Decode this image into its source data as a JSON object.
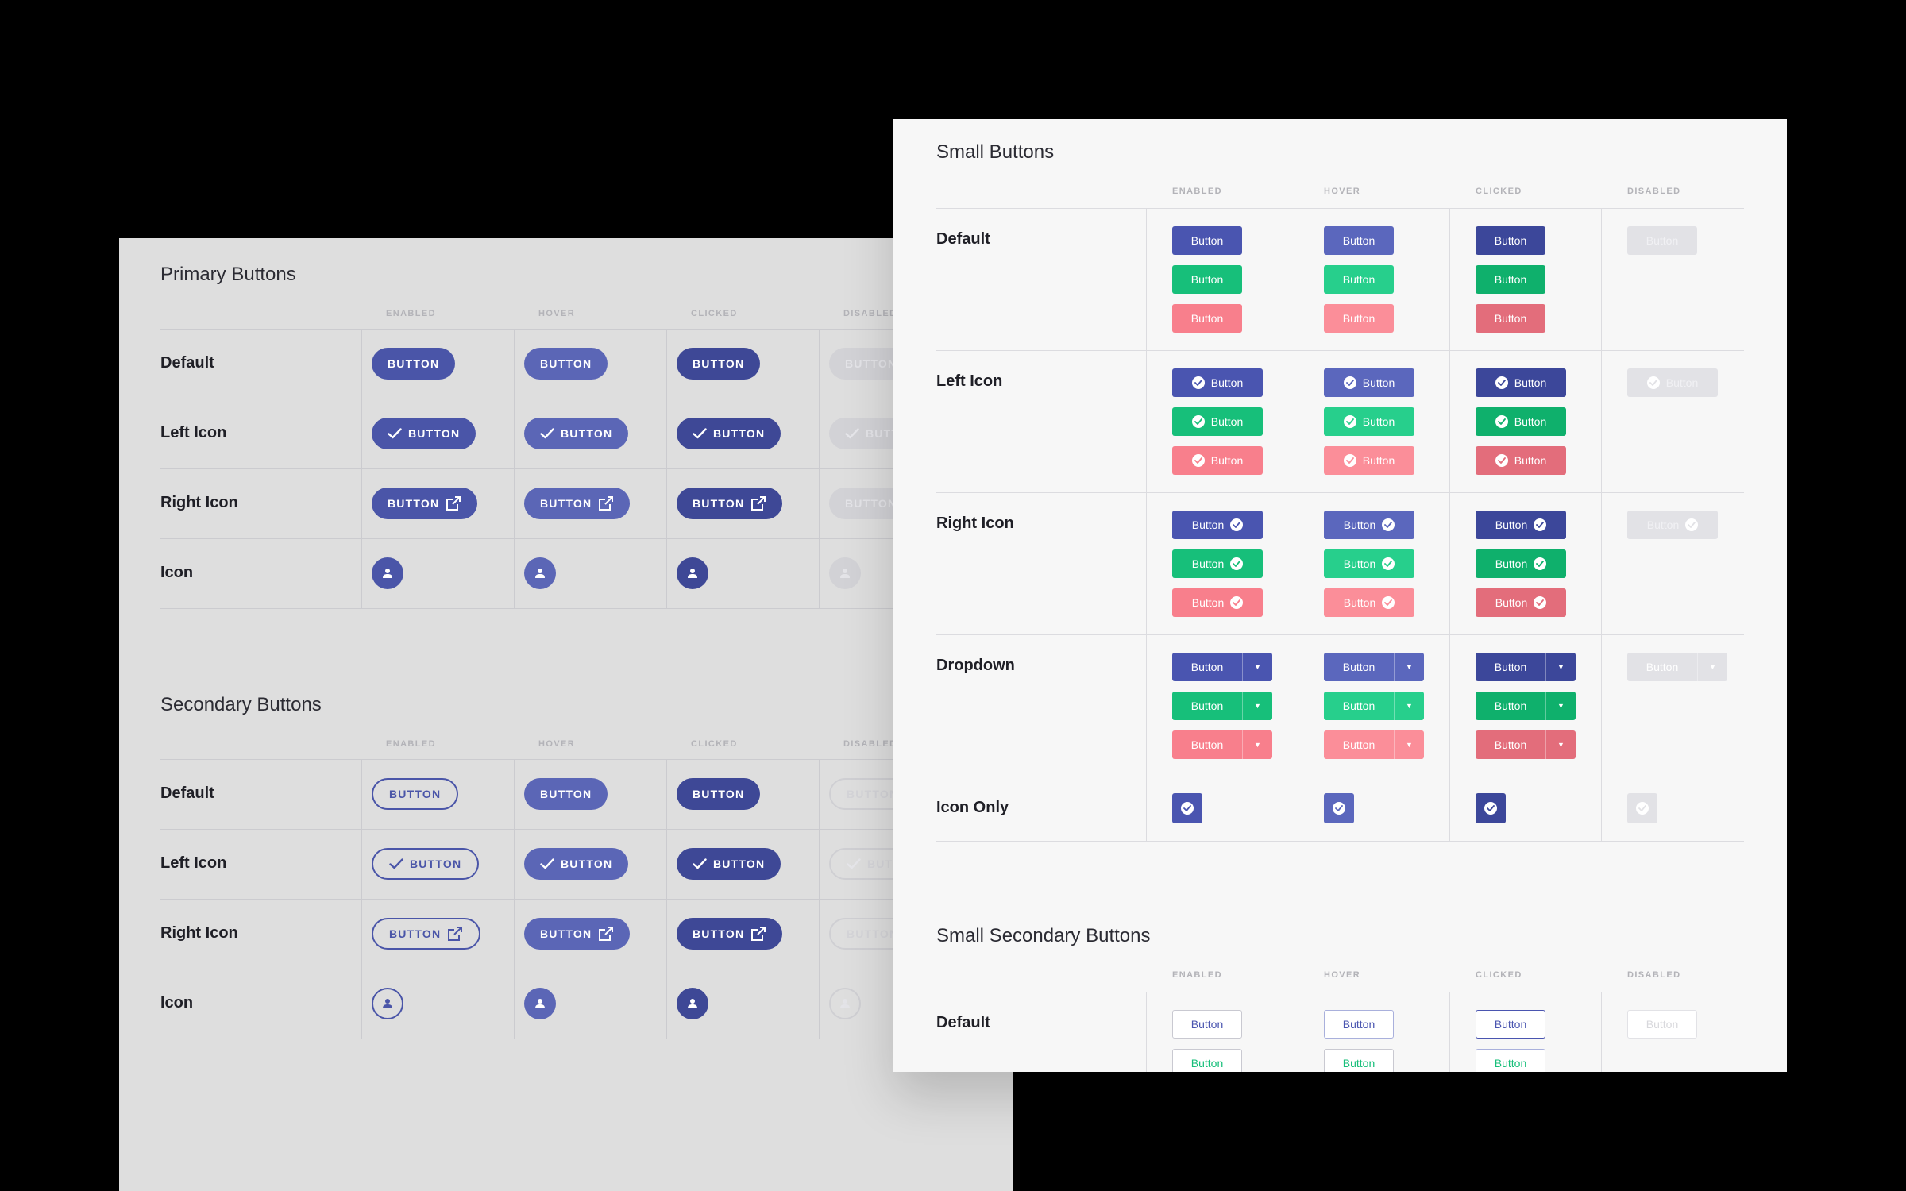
{
  "columns": [
    "ENABLED",
    "HOVER",
    "CLICKED",
    "DISABLED"
  ],
  "primary": {
    "title": "Primary Buttons",
    "rows": [
      "Default",
      "Left Icon",
      "Right Icon",
      "Icon"
    ],
    "button_label": "BUTTON"
  },
  "secondary": {
    "title": "Secondary Buttons",
    "rows": [
      "Default",
      "Left Icon",
      "Right Icon",
      "Icon"
    ],
    "button_label": "BUTTON"
  },
  "small": {
    "title": "Small Buttons",
    "rows": [
      "Default",
      "Left Icon",
      "Right Icon",
      "Dropdown",
      "Icon Only"
    ],
    "button_label": "Button"
  },
  "small_secondary": {
    "title": "Small Secondary Buttons",
    "rows": [
      "Default"
    ],
    "button_label": "Button"
  },
  "icons": {
    "check": "check-icon",
    "external": "external-link-icon",
    "user": "user-icon",
    "check_circle": "check-circle-icon",
    "caret": "caret-down-icon"
  },
  "colors": {
    "primary": "#4a55a8",
    "success": "#17bf7a",
    "danger": "#f87f8c",
    "disabled": "#d2d2d6"
  }
}
